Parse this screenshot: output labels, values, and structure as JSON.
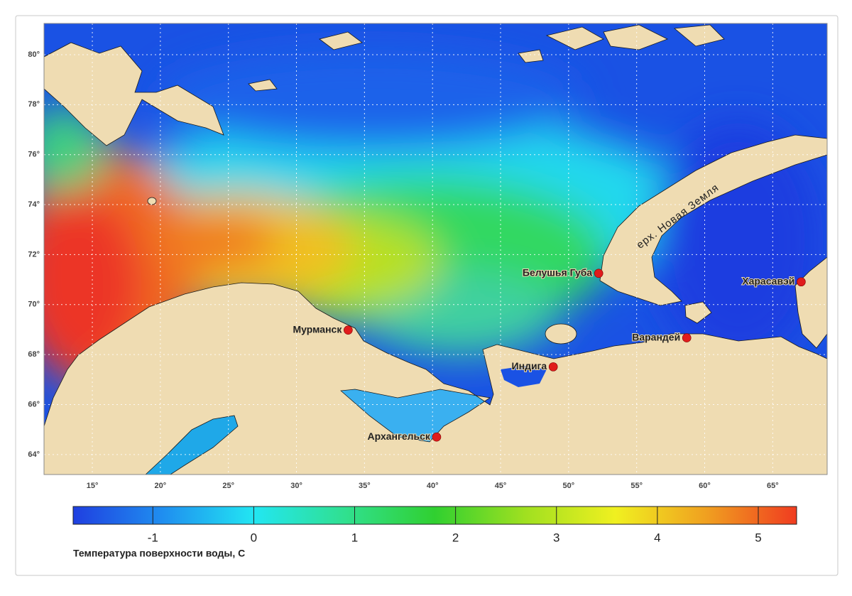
{
  "chart_data": {
    "type": "map",
    "xlim": [
      11.45,
      69.0
    ],
    "ylim": [
      63.2,
      81.25
    ],
    "xticks": [
      {
        "value": 15,
        "label": "15°"
      },
      {
        "value": 20,
        "label": "20°"
      },
      {
        "value": 25,
        "label": "25°"
      },
      {
        "value": 30,
        "label": "30°"
      },
      {
        "value": 35,
        "label": "35°"
      },
      {
        "value": 40,
        "label": "40°"
      },
      {
        "value": 45,
        "label": "45°"
      },
      {
        "value": 50,
        "label": "50°"
      },
      {
        "value": 55,
        "label": "55°"
      },
      {
        "value": 60,
        "label": "60°"
      },
      {
        "value": 65,
        "label": "65°"
      }
    ],
    "yticks": [
      {
        "value": 64,
        "label": "64°"
      },
      {
        "value": 66,
        "label": "66°"
      },
      {
        "value": 68,
        "label": "68°"
      },
      {
        "value": 70,
        "label": "70°"
      },
      {
        "value": 72,
        "label": "72°"
      },
      {
        "value": 74,
        "label": "74°"
      },
      {
        "value": 76,
        "label": "76°"
      },
      {
        "value": 78,
        "label": "78°"
      },
      {
        "value": 80,
        "label": "80°"
      }
    ],
    "grid": true,
    "marker_color": "#e01c1c",
    "cities": [
      {
        "name": "Мурманск",
        "lon": 33.8,
        "lat": 68.98
      },
      {
        "name": "Архангельск",
        "lon": 40.3,
        "lat": 64.7
      },
      {
        "name": "Индига",
        "lon": 48.87,
        "lat": 67.51
      },
      {
        "name": "Варандей",
        "lon": 58.68,
        "lat": 68.67
      },
      {
        "name": "Белушья Губа",
        "lon": 52.21,
        "lat": 71.25
      },
      {
        "name": "Харасавэй",
        "lon": 67.09,
        "lat": 70.91
      }
    ],
    "annotation": "ерх. Новая Земля",
    "colorbar": {
      "label": "Температура поверхности воды, С",
      "lim": [
        -1.79,
        5.38
      ],
      "ticks": [
        -1,
        0,
        1,
        2,
        3,
        4,
        5
      ],
      "colormap": [
        "#1f3fe0",
        "#1f8ff0",
        "#22e6f2",
        "#30e090",
        "#30d030",
        "#a0e020",
        "#f0f020",
        "#f0a020",
        "#f03c20"
      ]
    }
  }
}
